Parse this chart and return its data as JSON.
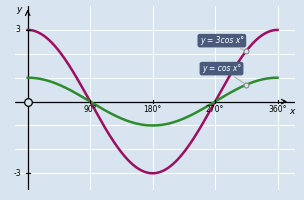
{
  "xlabel": "x",
  "ylabel": "y",
  "xlim": [
    -18,
    385
  ],
  "ylim": [
    -3.7,
    4.0
  ],
  "yticks": [
    -3,
    3
  ],
  "xticks": [
    90,
    180,
    270,
    360
  ],
  "xtick_labels": [
    "90°",
    "180°",
    "270°",
    "360°"
  ],
  "bg_color": "#d8e4ef",
  "axes_color": "#000000",
  "grid_color": "#ffffff",
  "cos_color": "#2e8b2e",
  "cos3_color": "#9b1060",
  "label_box_color": "#4a5a7a",
  "label_text_color": "#ffffff",
  "cos_label": "y = cos x°",
  "cos3_label": "y = 3cos x°",
  "dot_x_deg": 315,
  "figsize": [
    3.04,
    2.0
  ],
  "dpi": 100
}
